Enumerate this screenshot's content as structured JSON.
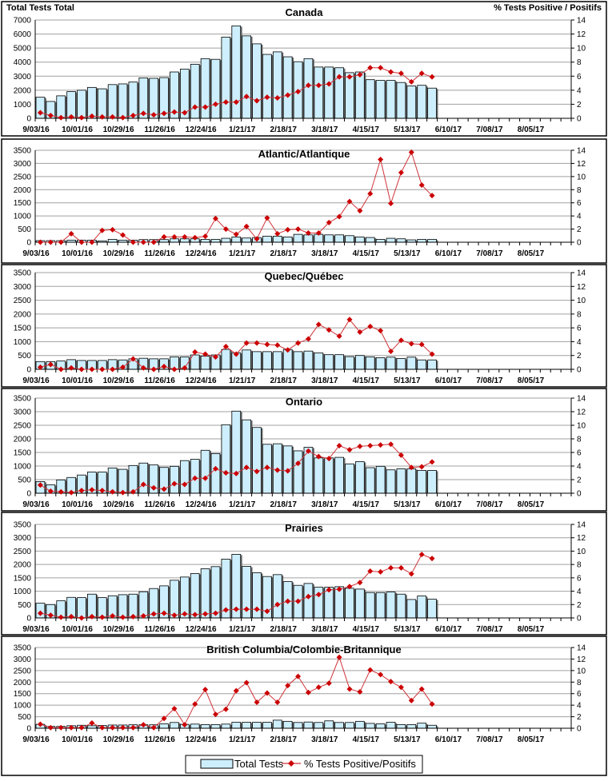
{
  "chart_data": [
    {
      "type": "bar+line",
      "title": "Canada",
      "ylabel_left": "Total Tests Total",
      "ylabel_right": "% Tests Positive / Positifs",
      "ylim_left": [
        0,
        7000
      ],
      "yticks_left": [
        0,
        1000,
        2000,
        3000,
        4000,
        5000,
        6000,
        7000
      ],
      "ylim_right": [
        0,
        14
      ],
      "yticks_right": [
        0,
        2,
        4,
        6,
        8,
        10,
        12,
        14
      ],
      "tests": [
        1500,
        1200,
        1600,
        1900,
        2000,
        2200,
        2100,
        2400,
        2450,
        2580,
        2880,
        2850,
        2900,
        3300,
        3500,
        3850,
        4250,
        4200,
        5780,
        6580,
        5870,
        5300,
        4550,
        4730,
        4380,
        4030,
        4250,
        3650,
        3650,
        3600,
        3250,
        3300,
        2750,
        2700,
        2700,
        2550,
        2300,
        2350,
        2150
      ],
      "pct_positive": [
        0.8,
        0.4,
        0.1,
        0.2,
        0.1,
        0.3,
        0.2,
        0.2,
        0.1,
        0.4,
        0.7,
        0.5,
        0.7,
        0.9,
        0.8,
        1.6,
        1.6,
        2.0,
        2.3,
        2.3,
        3.1,
        2.5,
        3.0,
        2.9,
        3.3,
        3.8,
        4.7,
        4.7,
        4.9,
        5.9,
        5.9,
        6.2,
        7.2,
        7.2,
        6.6,
        6.4,
        5.2,
        6.4,
        5.9
      ]
    },
    {
      "type": "bar+line",
      "title": "Atlantic/Atlantique",
      "ylim_left": [
        0,
        3500
      ],
      "yticks_left": [
        0,
        500,
        1000,
        1500,
        2000,
        2500,
        3000,
        3500
      ],
      "ylim_right": [
        0,
        14
      ],
      "yticks_right": [
        0,
        2,
        4,
        6,
        8,
        10,
        12,
        14
      ],
      "tests": [
        60,
        60,
        60,
        80,
        80,
        80,
        50,
        110,
        80,
        80,
        100,
        100,
        100,
        130,
        130,
        130,
        110,
        110,
        150,
        200,
        160,
        180,
        230,
        230,
        200,
        300,
        280,
        300,
        280,
        280,
        250,
        200,
        180,
        110,
        150,
        130,
        90,
        110,
        110
      ],
      "pct_positive": [
        0,
        0,
        0,
        1.3,
        0,
        0,
        1.8,
        1.9,
        1.1,
        0,
        0,
        0,
        0.8,
        0.8,
        0.8,
        0.7,
        0.9,
        3.6,
        2.0,
        1.2,
        2.4,
        0.5,
        3.7,
        1.3,
        1.9,
        2.0,
        1.4,
        1.4,
        3.0,
        3.9,
        6.2,
        4.8,
        7.4,
        12.6,
        5.9,
        10.6,
        13.7,
        8.7,
        7.1
      ]
    },
    {
      "type": "bar+line",
      "title": "Quebec/Québec",
      "ylim_left": [
        0,
        3500
      ],
      "yticks_left": [
        0,
        500,
        1000,
        1500,
        2000,
        2500,
        3000,
        3500
      ],
      "ylim_right": [
        0,
        14
      ],
      "yticks_right": [
        0,
        2,
        4,
        6,
        8,
        10,
        12,
        14
      ],
      "tests": [
        280,
        280,
        300,
        350,
        320,
        320,
        320,
        350,
        340,
        380,
        400,
        380,
        380,
        450,
        450,
        520,
        480,
        520,
        720,
        600,
        700,
        640,
        640,
        640,
        720,
        640,
        660,
        590,
        530,
        530,
        460,
        500,
        450,
        420,
        440,
        390,
        440,
        340,
        340
      ],
      "pct_positive": [
        0.3,
        0.7,
        0,
        0.2,
        0,
        0,
        0,
        0,
        0.3,
        1.5,
        0.2,
        0,
        0.4,
        0,
        0.2,
        2.5,
        2.2,
        1.8,
        3.3,
        2.2,
        3.8,
        3.8,
        3.6,
        3.5,
        2.8,
        3.8,
        4.4,
        6.5,
        5.7,
        4.8,
        7.2,
        5.4,
        6.2,
        5.6,
        2.6,
        4.2,
        3.7,
        3.6,
        2.2
      ]
    },
    {
      "type": "bar+line",
      "title": "Ontario",
      "ylim_left": [
        0,
        3500
      ],
      "yticks_left": [
        0,
        500,
        1000,
        1500,
        2000,
        2500,
        3000,
        3500
      ],
      "ylim_right": [
        0,
        14
      ],
      "yticks_right": [
        0,
        2,
        4,
        6,
        8,
        10,
        12,
        14
      ],
      "tests": [
        430,
        310,
        490,
        580,
        670,
        780,
        780,
        930,
        880,
        1020,
        1110,
        1040,
        950,
        990,
        1200,
        1250,
        1580,
        1460,
        2520,
        3020,
        2700,
        2420,
        1800,
        1820,
        1740,
        1560,
        1690,
        1300,
        1300,
        1320,
        1080,
        1160,
        940,
        990,
        860,
        900,
        900,
        840,
        840
      ],
      "pct_positive": [
        1.2,
        0.3,
        0.2,
        0.1,
        0.4,
        0.5,
        0.4,
        0.2,
        0.1,
        0.2,
        1.3,
        0.8,
        0.6,
        1.4,
        1.3,
        2.2,
        2.2,
        3.6,
        3.0,
        2.9,
        3.8,
        3.2,
        3.8,
        3.4,
        3.3,
        4.4,
        6.2,
        5.4,
        5.1,
        7.0,
        6.4,
        6.9,
        7.0,
        7.1,
        7.2,
        5.6,
        3.8,
        3.9,
        4.6
      ]
    },
    {
      "type": "bar+line",
      "title": "Prairies",
      "ylim_left": [
        0,
        3500
      ],
      "yticks_left": [
        0,
        500,
        1000,
        1500,
        2000,
        2500,
        3000,
        3500
      ],
      "ylim_right": [
        0,
        14
      ],
      "yticks_right": [
        0,
        2,
        4,
        6,
        8,
        10,
        12,
        14
      ],
      "tests": [
        550,
        500,
        640,
        770,
        760,
        890,
        760,
        830,
        870,
        890,
        980,
        1100,
        1200,
        1410,
        1530,
        1660,
        1840,
        1920,
        2200,
        2380,
        1930,
        1690,
        1550,
        1620,
        1360,
        1220,
        1290,
        1150,
        1150,
        1170,
        1110,
        1080,
        950,
        950,
        970,
        890,
        690,
        820,
        700
      ],
      "pct_positive": [
        0.7,
        0.4,
        0.1,
        0.2,
        0,
        0.2,
        0.1,
        0.3,
        0.1,
        0.2,
        0.3,
        0.6,
        0.7,
        0.4,
        0.6,
        0.5,
        0.6,
        0.7,
        1.2,
        1.3,
        1.3,
        1.3,
        1.0,
        2.0,
        2.5,
        2.5,
        3.2,
        3.5,
        4.2,
        4.3,
        4.7,
        5.3,
        7.0,
        6.9,
        7.5,
        7.5,
        6.6,
        9.5,
        8.9
      ]
    },
    {
      "type": "bar+line",
      "title": "British Columbia/Colombie-Britannique",
      "ylim_left": [
        0,
        3500
      ],
      "yticks_left": [
        0,
        500,
        1000,
        1500,
        2000,
        2500,
        3000,
        3500
      ],
      "ylim_right": [
        0,
        14
      ],
      "yticks_right": [
        0,
        2,
        4,
        6,
        8,
        10,
        12,
        14
      ],
      "tests": [
        170,
        80,
        80,
        110,
        130,
        110,
        120,
        140,
        140,
        150,
        150,
        150,
        190,
        250,
        170,
        180,
        160,
        160,
        180,
        260,
        260,
        260,
        260,
        350,
        300,
        250,
        270,
        250,
        320,
        250,
        250,
        300,
        210,
        190,
        260,
        160,
        160,
        220,
        130
      ],
      "pct_positive": [
        0.7,
        0.1,
        0.1,
        0.1,
        0.1,
        0.9,
        0.1,
        0.1,
        0.1,
        0.1,
        0.6,
        0.1,
        1.7,
        3.4,
        0.6,
        4.2,
        6.7,
        2.4,
        3.3,
        6.5,
        7.9,
        4.5,
        6.1,
        4.5,
        7.4,
        9.0,
        6.2,
        7.1,
        7.8,
        12.3,
        6.8,
        6.3,
        10.1,
        9.3,
        8.1,
        7.1,
        4.8,
        6.8,
        4.2
      ]
    }
  ],
  "x_axis": {
    "first_week": "9/03/16",
    "weeks": 52,
    "tick_labels": [
      "9/03/16",
      "10/01/16",
      "10/29/16",
      "11/26/16",
      "12/24/16",
      "1/21/17",
      "2/18/17",
      "3/18/17",
      "4/15/17",
      "5/13/17",
      "6/10/17",
      "7/08/17",
      "8/05/17"
    ]
  },
  "legend": {
    "placement": "bottom-center",
    "bar_label": "Total Tests",
    "line_label": "% Tests Positive/Positifs"
  },
  "colors": {
    "bar_fill": "#cdeefc",
    "bar_stroke": "#000000",
    "line": "#d0343a",
    "marker": "#cc0000",
    "grid": "#a0a0a0"
  }
}
